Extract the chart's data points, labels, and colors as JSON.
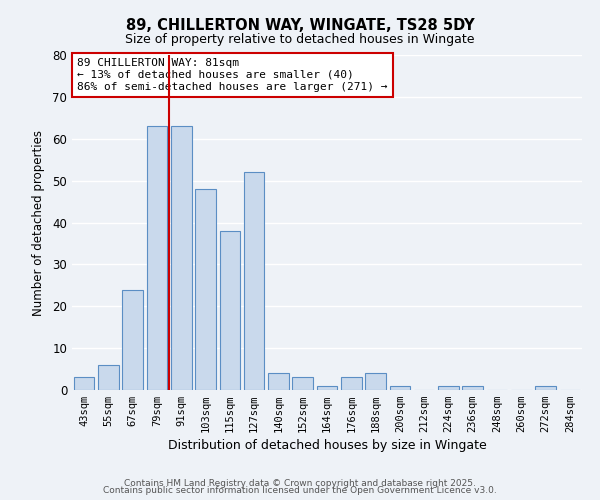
{
  "title": "89, CHILLERTON WAY, WINGATE, TS28 5DY",
  "subtitle": "Size of property relative to detached houses in Wingate",
  "xlabel": "Distribution of detached houses by size in Wingate",
  "ylabel": "Number of detached properties",
  "bar_labels": [
    "43sqm",
    "55sqm",
    "67sqm",
    "79sqm",
    "91sqm",
    "103sqm",
    "115sqm",
    "127sqm",
    "140sqm",
    "152sqm",
    "164sqm",
    "176sqm",
    "188sqm",
    "200sqm",
    "212sqm",
    "224sqm",
    "236sqm",
    "248sqm",
    "260sqm",
    "272sqm",
    "284sqm"
  ],
  "bar_values": [
    3,
    6,
    24,
    63,
    63,
    48,
    38,
    52,
    4,
    3,
    1,
    3,
    4,
    1,
    0,
    1,
    1,
    0,
    0,
    1,
    0
  ],
  "bar_color": "#c9d9ec",
  "bar_edge_color": "#5b8ec4",
  "ylim": [
    0,
    80
  ],
  "yticks": [
    0,
    10,
    20,
    30,
    40,
    50,
    60,
    70,
    80
  ],
  "vline_color": "#cc0000",
  "annotation_title": "89 CHILLERTON WAY: 81sqm",
  "annotation_line1": "← 13% of detached houses are smaller (40)",
  "annotation_line2": "86% of semi-detached houses are larger (271) →",
  "annotation_box_color": "#ffffff",
  "annotation_box_edge": "#cc0000",
  "background_color": "#eef2f7",
  "footer1": "Contains HM Land Registry data © Crown copyright and database right 2025.",
  "footer2": "Contains public sector information licensed under the Open Government Licence v3.0."
}
